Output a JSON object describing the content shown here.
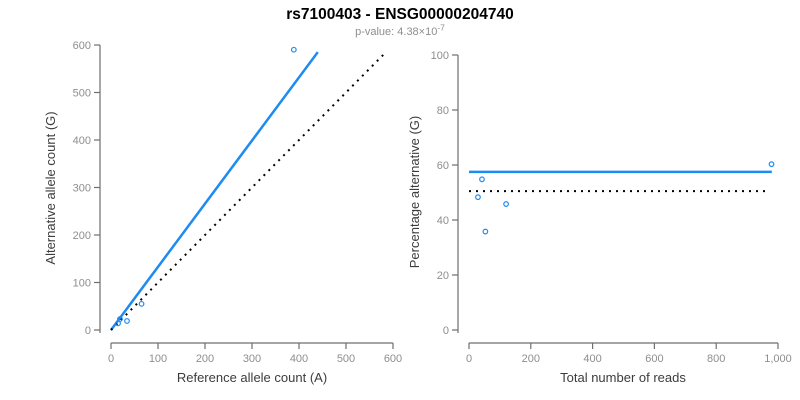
{
  "header": {
    "title": "rs7100403 - ENSG00000204740",
    "pvalue_base": "p-value: 4.38×10",
    "pvalue_exponent": "-7"
  },
  "colors": {
    "accent_blue": "#1E8BF0",
    "dotted_black": "#000000",
    "axis_line": "#6f6f6f",
    "tick_text": "#8e8e8e",
    "axis_title_text": "#3c3c3c",
    "title_text": "#000000",
    "subtitle_text": "#8e8e8e",
    "background": "#ffffff"
  },
  "chart_data": [
    {
      "type": "scatter",
      "name": "allele-counts",
      "xlabel": "Reference allele count (A)",
      "ylabel": "Alternative allele count (G)",
      "xlim": [
        0,
        600
      ],
      "ylim": [
        0,
        600
      ],
      "grid": false,
      "xticks": {
        "values": [
          0,
          100,
          200,
          300,
          400,
          500,
          600
        ],
        "labels": [
          "0",
          "100",
          "200",
          "300",
          "400",
          "500",
          "600"
        ]
      },
      "yticks": {
        "values": [
          0,
          100,
          200,
          300,
          400,
          500,
          600
        ],
        "labels": [
          "0",
          "100",
          "200",
          "300",
          "400",
          "500",
          "600"
        ]
      },
      "points": [
        {
          "x": 15,
          "y": 14
        },
        {
          "x": 19,
          "y": 23
        },
        {
          "x": 34,
          "y": 19
        },
        {
          "x": 65,
          "y": 55
        },
        {
          "x": 389,
          "y": 590
        }
      ],
      "lines": [
        {
          "name": "fit-line",
          "x1": 0,
          "y1": 0,
          "x2": 440,
          "y2": 585,
          "style": "solid",
          "color": "#1E8BF0",
          "width": 2.5
        },
        {
          "name": "identity-line",
          "x1": 0,
          "y1": 0,
          "x2": 585,
          "y2": 585,
          "style": "dotted",
          "color": "#000000",
          "width": 2
        }
      ]
    },
    {
      "type": "scatter",
      "name": "percentage-vs-reads",
      "xlabel": "Total number of reads",
      "ylabel": "Percentage alternative (G)",
      "xlim": [
        0,
        1000
      ],
      "ylim": [
        0,
        100
      ],
      "grid": false,
      "xticks": {
        "values": [
          0,
          200,
          400,
          600,
          800,
          1000
        ],
        "labels": [
          "0",
          "200",
          "400",
          "600",
          "800",
          "1,000"
        ]
      },
      "yticks": {
        "values": [
          0,
          20,
          40,
          60,
          80,
          100
        ],
        "labels": [
          "0",
          "20",
          "40",
          "60",
          "80",
          "100"
        ]
      },
      "points": [
        {
          "x": 29,
          "y": 48.3
        },
        {
          "x": 42,
          "y": 54.8
        },
        {
          "x": 53,
          "y": 35.8
        },
        {
          "x": 120,
          "y": 45.8
        },
        {
          "x": 979,
          "y": 60.3
        }
      ],
      "lines": [
        {
          "name": "fit-line",
          "x1": 0,
          "y1": 57.5,
          "x2": 980,
          "y2": 57.5,
          "style": "solid",
          "color": "#1E8BF0",
          "width": 2.5
        },
        {
          "name": "null-line",
          "x1": 0,
          "y1": 50.5,
          "x2": 960,
          "y2": 50.5,
          "style": "dotted",
          "color": "#000000",
          "width": 2
        }
      ]
    }
  ]
}
